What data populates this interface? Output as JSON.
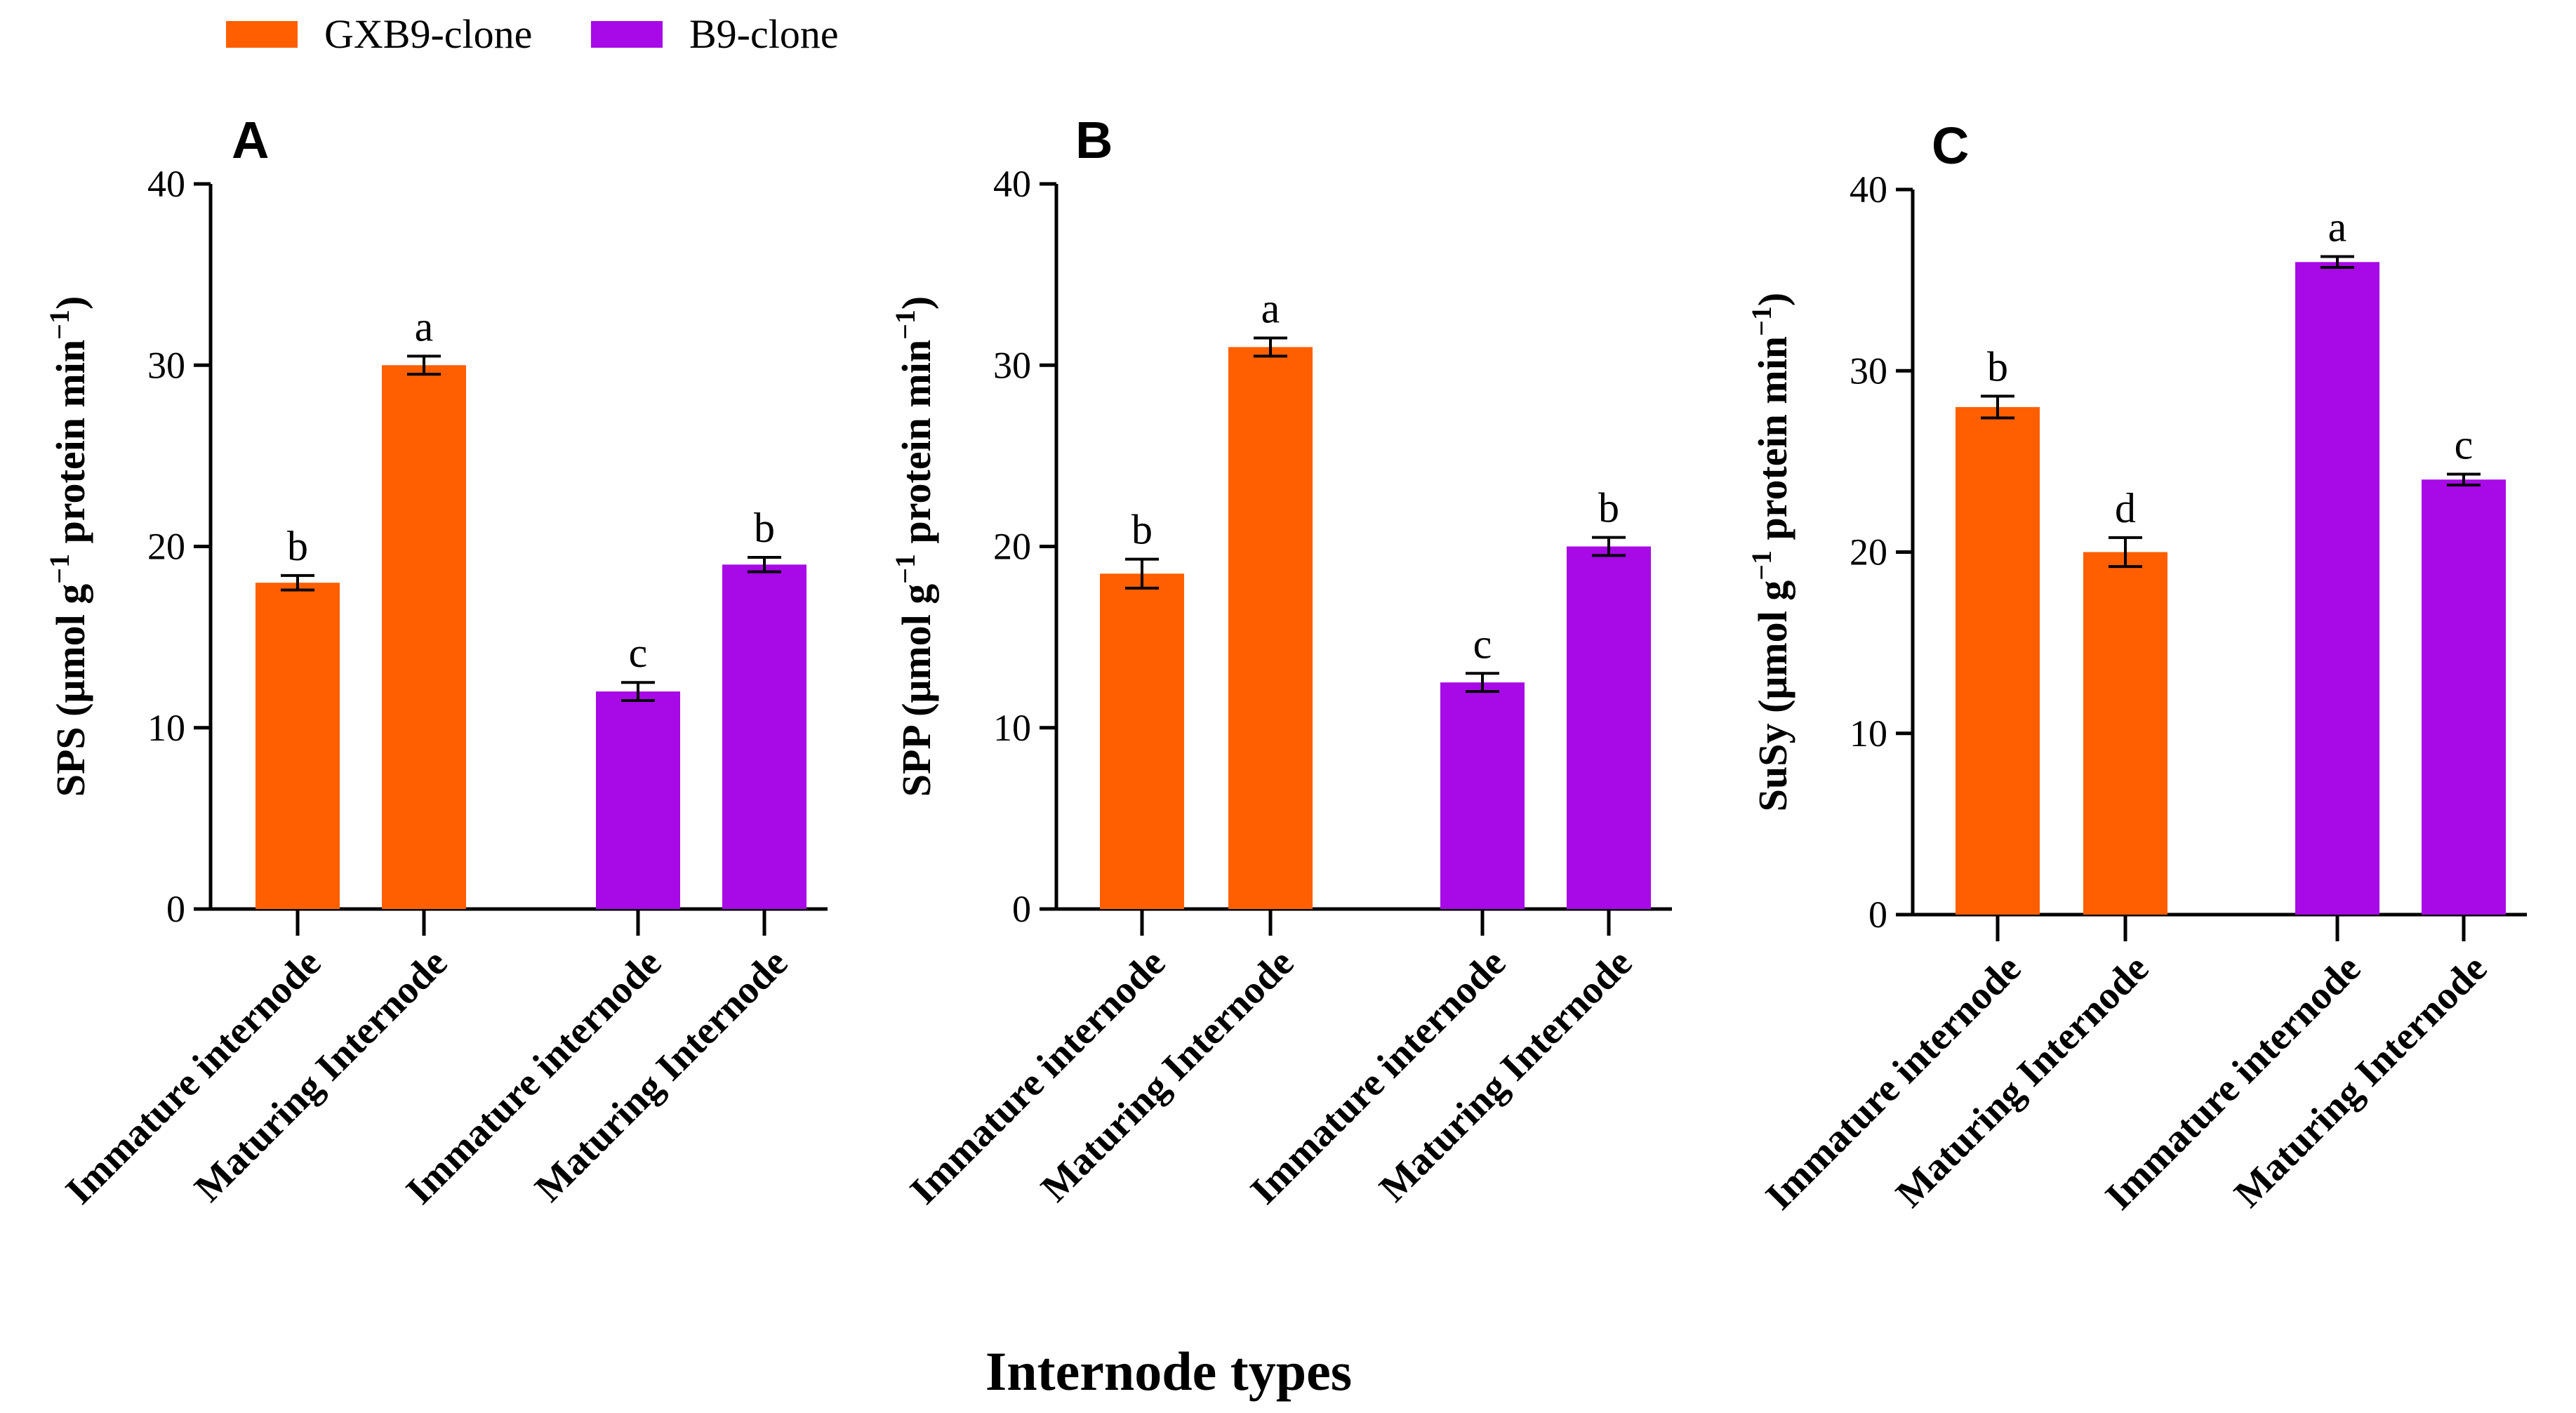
{
  "colors": {
    "GXB9-clone": "#ff5f00",
    "B9-clone": "#a70ae6",
    "axis": "#000000"
  },
  "legend": {
    "placement": "top-left",
    "items": [
      {
        "label": "GXB9-clone",
        "color": "#ff5f00"
      },
      {
        "label": "B9-clone",
        "color": "#a70ae6"
      }
    ]
  },
  "xlabel": "Internode types",
  "chart_data": [
    {
      "type": "bar",
      "panel_label": "A",
      "ylabel_prefix": "SPS (μmol  g",
      "ylabel_sup1": "−1",
      "ylabel_middle": "  protein min",
      "ylabel_sup2": "−1",
      "ylabel_suffix": ")",
      "ylim": [
        0,
        40
      ],
      "yticks": [
        0,
        10,
        20,
        30,
        40
      ],
      "categories": [
        "Immature internode",
        "Maturing Internode",
        "Immature internode",
        "Maturing Internode"
      ],
      "groups": [
        "GXB9-clone",
        "GXB9-clone",
        "B9-clone",
        "B9-clone"
      ],
      "values": [
        18,
        30,
        12,
        19
      ],
      "errors": [
        0.4,
        0.5,
        0.5,
        0.4
      ],
      "letters": [
        "b",
        "a",
        "c",
        "b"
      ]
    },
    {
      "type": "bar",
      "panel_label": "B",
      "ylabel_prefix": "SPP (μmol  g",
      "ylabel_sup1": "−1",
      "ylabel_middle": "  protein min",
      "ylabel_sup2": "−1",
      "ylabel_suffix": ")",
      "ylim": [
        0,
        40
      ],
      "yticks": [
        0,
        10,
        20,
        30,
        40
      ],
      "categories": [
        "Immature internode",
        "Maturing Internode",
        "Immature internode",
        "Maturing Internode"
      ],
      "groups": [
        "GXB9-clone",
        "GXB9-clone",
        "B9-clone",
        "B9-clone"
      ],
      "values": [
        18.5,
        31,
        12.5,
        20
      ],
      "errors": [
        0.8,
        0.5,
        0.5,
        0.5
      ],
      "letters": [
        "b",
        "a",
        "c",
        "b"
      ]
    },
    {
      "type": "bar",
      "panel_label": "C",
      "ylabel_prefix": "SuSy (μmol  g",
      "ylabel_sup1": "−1",
      "ylabel_middle": "  protein min",
      "ylabel_sup2": "−1",
      "ylabel_suffix": ")",
      "ylim": [
        0,
        40
      ],
      "yticks": [
        0,
        10,
        20,
        30,
        40
      ],
      "categories": [
        "Immature internode",
        "Maturing Internode",
        "Immature internode",
        "Maturing Internode"
      ],
      "groups": [
        "GXB9-clone",
        "GXB9-clone",
        "B9-clone",
        "B9-clone"
      ],
      "values": [
        28,
        20,
        36,
        24
      ],
      "errors": [
        0.6,
        0.8,
        0.3,
        0.3
      ],
      "letters": [
        "b",
        "d",
        "a",
        "c"
      ]
    }
  ]
}
